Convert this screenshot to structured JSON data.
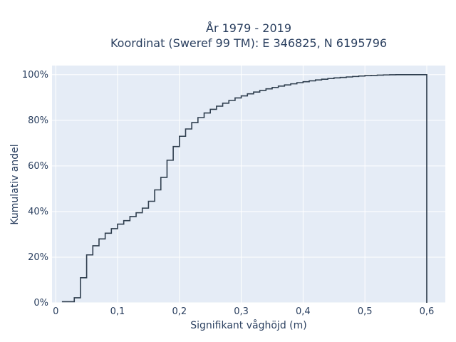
{
  "chart_data": {
    "type": "line",
    "line_shape": "step",
    "title_lines": [
      "År 1979 - 2019",
      "Koordinat (Sweref 99 TM): E 346825, N 6195796"
    ],
    "xlabel": "Signifikant våghöjd (m)",
    "ylabel": "Kumulativ andel",
    "xlim": [
      -0.006,
      0.63
    ],
    "ylim": [
      0,
      1.04
    ],
    "x_ticks": [
      0,
      0.1,
      0.2,
      0.3,
      0.4,
      0.5,
      0.6
    ],
    "x_tick_labels": [
      "0",
      "0,1",
      "0,2",
      "0,3",
      "0,4",
      "0,5",
      "0,6"
    ],
    "y_ticks": [
      0,
      0.2,
      0.4,
      0.6,
      0.8,
      1.0
    ],
    "y_tick_labels": [
      "0%",
      "20%",
      "40%",
      "60%",
      "80%",
      "100%"
    ],
    "grid": true,
    "background_color": "#e5ecf6",
    "line_color": "#2f3e4e",
    "series": [
      {
        "x": [
          0.02,
          0.03,
          0.04,
          0.05,
          0.06,
          0.07,
          0.08,
          0.09,
          0.1,
          0.11,
          0.12,
          0.13,
          0.14,
          0.15,
          0.16,
          0.17,
          0.18,
          0.19,
          0.2,
          0.21,
          0.22,
          0.23,
          0.24,
          0.25,
          0.26,
          0.27,
          0.28,
          0.29,
          0.3,
          0.31,
          0.32,
          0.33,
          0.34,
          0.35,
          0.36,
          0.37,
          0.38,
          0.39,
          0.4,
          0.41,
          0.42,
          0.43,
          0.44,
          0.45,
          0.46,
          0.47,
          0.48,
          0.49,
          0.5,
          0.51,
          0.52,
          0.53,
          0.54,
          0.55,
          0.6,
          0.6
        ],
        "y": [
          0.005,
          0.022,
          0.11,
          0.21,
          0.25,
          0.28,
          0.305,
          0.325,
          0.345,
          0.36,
          0.378,
          0.395,
          0.415,
          0.445,
          0.495,
          0.55,
          0.625,
          0.685,
          0.73,
          0.762,
          0.79,
          0.812,
          0.832,
          0.848,
          0.862,
          0.875,
          0.887,
          0.898,
          0.907,
          0.916,
          0.924,
          0.931,
          0.938,
          0.944,
          0.95,
          0.955,
          0.96,
          0.965,
          0.969,
          0.973,
          0.977,
          0.98,
          0.983,
          0.986,
          0.988,
          0.99,
          0.992,
          0.994,
          0.996,
          0.997,
          0.998,
          0.999,
          0.9995,
          1.0,
          1.0,
          0.0
        ]
      }
    ]
  }
}
